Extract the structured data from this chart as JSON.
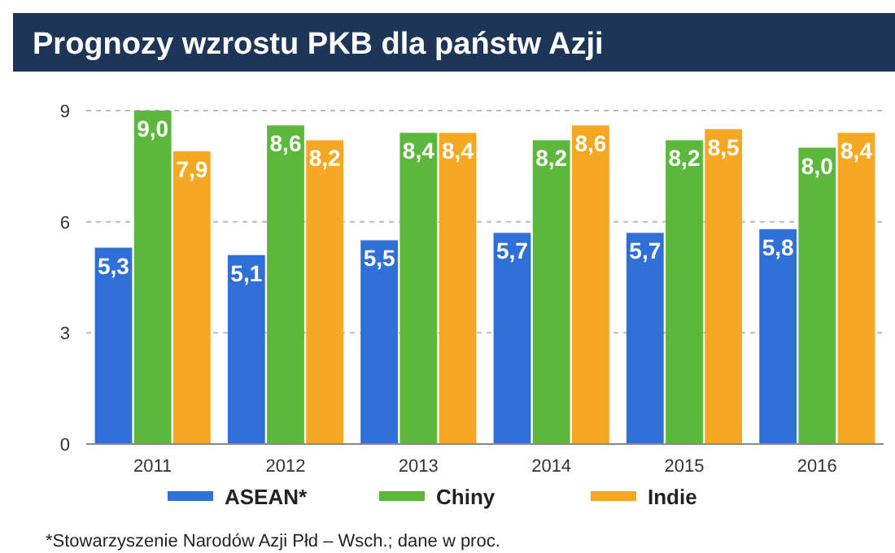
{
  "chart_data": {
    "type": "bar",
    "title": "Prognozy wzrostu PKB dla państw Azji",
    "categories": [
      "2011",
      "2012",
      "2013",
      "2014",
      "2015",
      "2016"
    ],
    "series": [
      {
        "name": "ASEAN*",
        "color": "#2f6fd8",
        "values": [
          5.3,
          5.1,
          5.5,
          5.7,
          5.7,
          5.8
        ],
        "value_labels": [
          "5,3",
          "5,1",
          "5,5",
          "5,7",
          "5,7",
          "5,8"
        ]
      },
      {
        "name": "Chiny",
        "color": "#5cb83a",
        "values": [
          9.0,
          8.6,
          8.4,
          8.2,
          8.2,
          8.0
        ],
        "value_labels": [
          "9,0",
          "8,6",
          "8,4",
          "8,2",
          "8,2",
          "8,0"
        ]
      },
      {
        "name": "Indie",
        "color": "#f7a823",
        "values": [
          7.9,
          8.2,
          8.4,
          8.6,
          8.5,
          8.4
        ],
        "value_labels": [
          "7,9",
          "8,2",
          "8,4",
          "8,6",
          "8,5",
          "8,4"
        ]
      }
    ],
    "ylim": [
      0,
      9
    ],
    "yticks": [
      0,
      3,
      6,
      9
    ],
    "grid": "y",
    "legend": "bottom",
    "annotations": [
      "*Stowarzyszenie Narodów Azji Płd – Wsch.; dane w proc."
    ]
  }
}
